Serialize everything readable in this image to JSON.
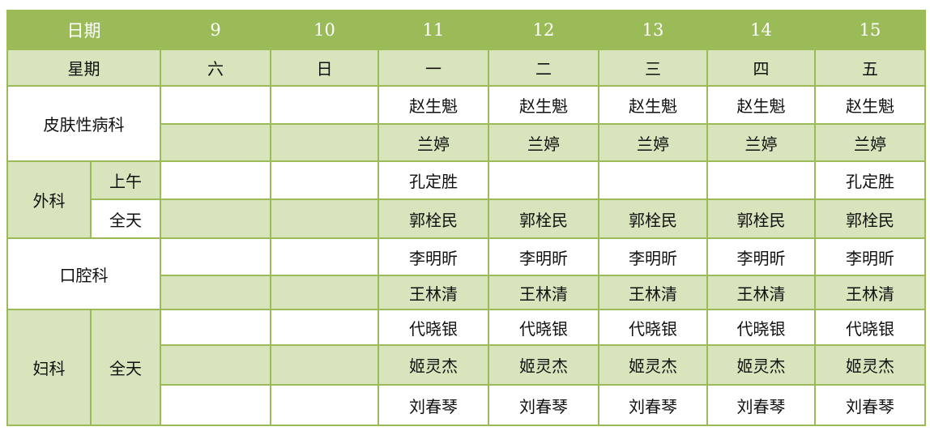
{
  "header": {
    "label": "日期",
    "dates": [
      "9",
      "10",
      "11",
      "12",
      "13",
      "14",
      "15"
    ]
  },
  "weekday_row": {
    "label": "星期",
    "days": [
      "六",
      "日",
      "一",
      "二",
      "三",
      "四",
      "五"
    ]
  },
  "departments": {
    "derm": {
      "name": "皮肤性病科",
      "rows": [
        [
          "",
          "",
          "赵生魁",
          "赵生魁",
          "赵生魁",
          "赵生魁",
          "赵生魁"
        ],
        [
          "",
          "",
          "兰婷",
          "兰婷",
          "兰婷",
          "兰婷",
          "兰婷"
        ]
      ]
    },
    "surgery": {
      "name": "外科",
      "shifts": [
        "上午",
        "全天"
      ],
      "rows": [
        [
          "",
          "",
          "孔定胜",
          "",
          "",
          "",
          "孔定胜"
        ],
        [
          "",
          "",
          "郭栓民",
          "郭栓民",
          "郭栓民",
          "郭栓民",
          "郭栓民"
        ]
      ]
    },
    "dental": {
      "name": "口腔科",
      "rows": [
        [
          "",
          "",
          "李明昕",
          "李明昕",
          "李明昕",
          "李明昕",
          "李明昕"
        ],
        [
          "",
          "",
          "王林清",
          "王林清",
          "王林清",
          "王林清",
          "王林清"
        ]
      ]
    },
    "gyn": {
      "name": "妇科",
      "shift": "全天",
      "rows": [
        [
          "",
          "",
          "代晓银",
          "代晓银",
          "代晓银",
          "代晓银",
          "代晓银"
        ],
        [
          "",
          "",
          "姬灵杰",
          "姬灵杰",
          "姬灵杰",
          "姬灵杰",
          "姬灵杰"
        ],
        [
          "",
          "",
          "刘春琴",
          "刘春琴",
          "刘春琴",
          "刘春琴",
          "刘春琴"
        ]
      ]
    }
  },
  "colors": {
    "header": "#9BBB59",
    "alt_row": "#D7E4BC",
    "border": "#9BBB59"
  }
}
